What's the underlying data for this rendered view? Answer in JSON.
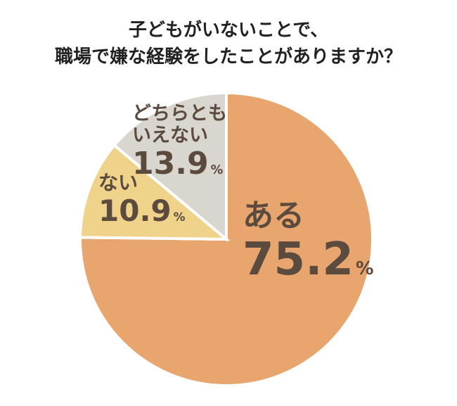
{
  "chart_data": {
    "type": "pie",
    "title": [
      "子どもがいないことで、",
      "職場で嫌な経験をしたことがありますか？"
    ],
    "categories": [
      "ある",
      "ない",
      "どちらともいえない"
    ],
    "values": [
      75.2,
      10.9,
      13.9
    ],
    "unit": "%",
    "colors": [
      "#e8a66e",
      "#f0d38a",
      "#d9d5cf"
    ]
  }
}
